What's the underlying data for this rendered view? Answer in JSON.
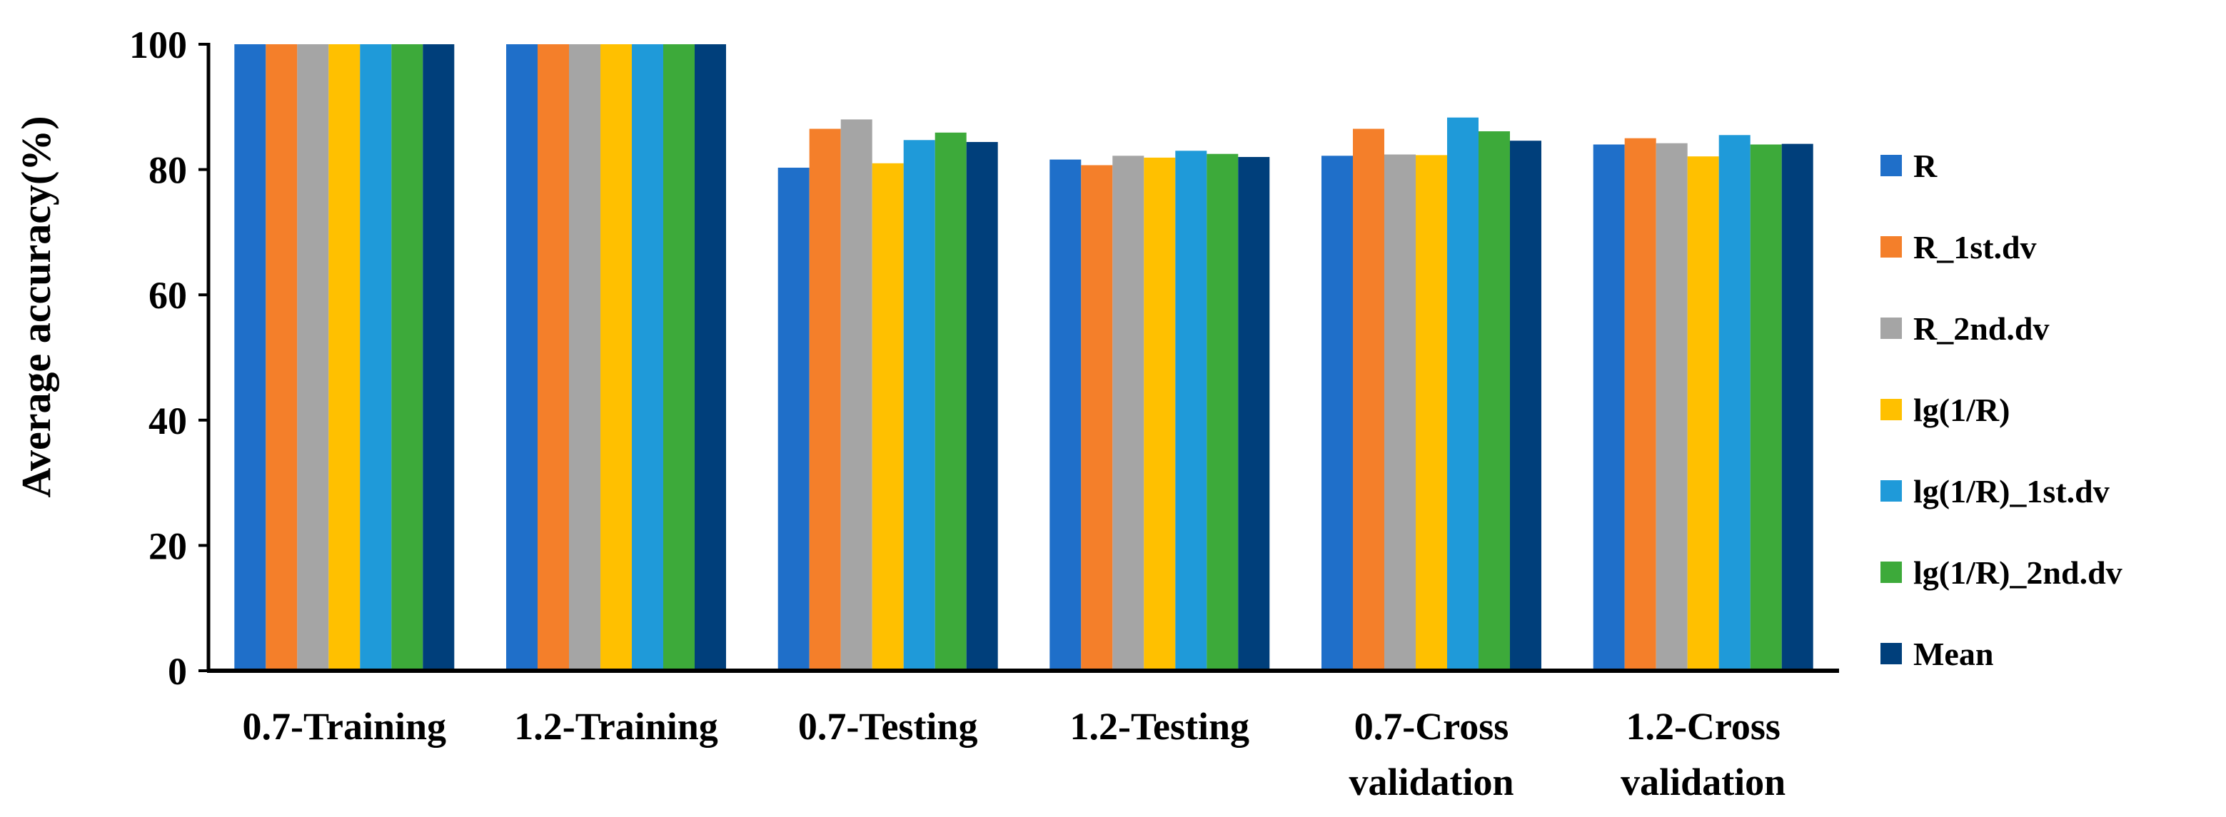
{
  "chart_data": {
    "type": "bar",
    "title": "",
    "xlabel": "",
    "ylabel": "Average accuracy(%)",
    "ylim": [
      0,
      100
    ],
    "yticks": [
      0,
      20,
      40,
      60,
      80,
      100
    ],
    "grid": false,
    "legend_position": "right",
    "categories": [
      [
        "0.7-Training"
      ],
      [
        "1.2-Training"
      ],
      [
        "0.7-Testing"
      ],
      [
        "1.2-Testing"
      ],
      [
        "0.7-Cross",
        "validation"
      ],
      [
        "1.2-Cross",
        "validation"
      ]
    ],
    "series": [
      {
        "name": "R",
        "color": "#1f6fc9",
        "values": [
          100,
          100,
          80.3,
          81.6,
          82.2,
          84.0
        ]
      },
      {
        "name": "R_1st.dv",
        "color": "#f47f2a",
        "values": [
          100,
          100,
          86.5,
          80.7,
          86.5,
          85.0
        ]
      },
      {
        "name": "R_2nd.dv",
        "color": "#a5a5a5",
        "values": [
          100,
          100,
          88.0,
          82.2,
          82.4,
          84.2
        ]
      },
      {
        "name": "lg(1/R)",
        "color": "#ffc000",
        "values": [
          100,
          100,
          81.0,
          81.9,
          82.3,
          82.1
        ]
      },
      {
        "name": "lg(1/R)_1st.dv",
        "color": "#1f9ad9",
        "values": [
          100,
          100,
          84.7,
          83.0,
          88.3,
          85.5
        ]
      },
      {
        "name": "lg(1/R)_2nd.dv",
        "color": "#3daa3a",
        "values": [
          100,
          100,
          85.9,
          82.5,
          86.1,
          84.0
        ]
      },
      {
        "name": "Mean",
        "color": "#003f7b",
        "values": [
          100,
          100,
          84.4,
          82.0,
          84.6,
          84.1
        ]
      }
    ]
  }
}
